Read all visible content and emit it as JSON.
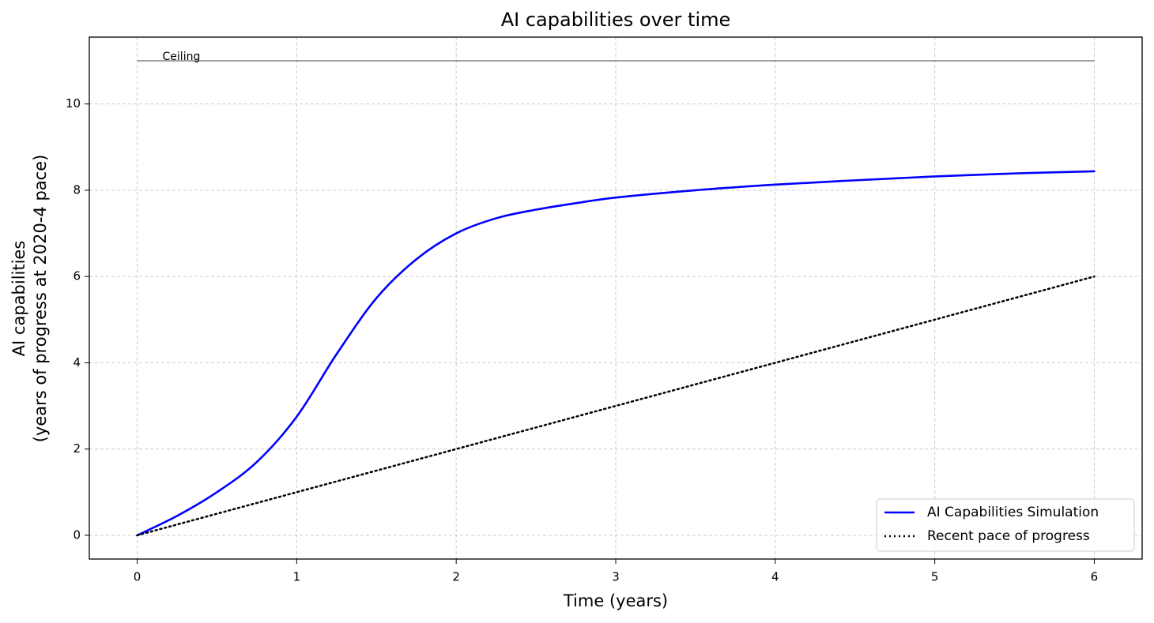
{
  "chart_data": {
    "type": "line",
    "title": "AI capabilities over time",
    "xlabel": "Time (years)",
    "ylabel": [
      "AI capabilities",
      "(years of progress at 2020-4 pace)"
    ],
    "xlim": [
      -0.3,
      6.3
    ],
    "ylim": [
      -0.55,
      11.55
    ],
    "xticks": [
      0,
      1,
      2,
      3,
      4,
      5,
      6
    ],
    "yticks": [
      0,
      2,
      4,
      6,
      8,
      10
    ],
    "grid": true,
    "legend": "lower right",
    "ceiling": {
      "label": "Ceiling",
      "value": 11,
      "x": [
        0,
        6
      ]
    },
    "series": [
      {
        "name": "AI Capabilities Simulation",
        "color": "#0000ff",
        "style": "solid",
        "x": [
          0,
          0.25,
          0.5,
          0.75,
          1,
          1.25,
          1.5,
          1.75,
          2,
          2.25,
          2.5,
          2.75,
          3,
          3.5,
          4,
          4.5,
          5,
          5.5,
          6
        ],
        "values": [
          0,
          0.45,
          1.0,
          1.7,
          2.75,
          4.2,
          5.5,
          6.4,
          7.0,
          7.35,
          7.55,
          7.7,
          7.83,
          8.0,
          8.13,
          8.23,
          8.32,
          8.39,
          8.44
        ]
      },
      {
        "name": "Recent pace of progress",
        "color": "#000000",
        "style": "dotted",
        "x": [
          0,
          6
        ],
        "values": [
          0,
          6
        ]
      }
    ]
  }
}
